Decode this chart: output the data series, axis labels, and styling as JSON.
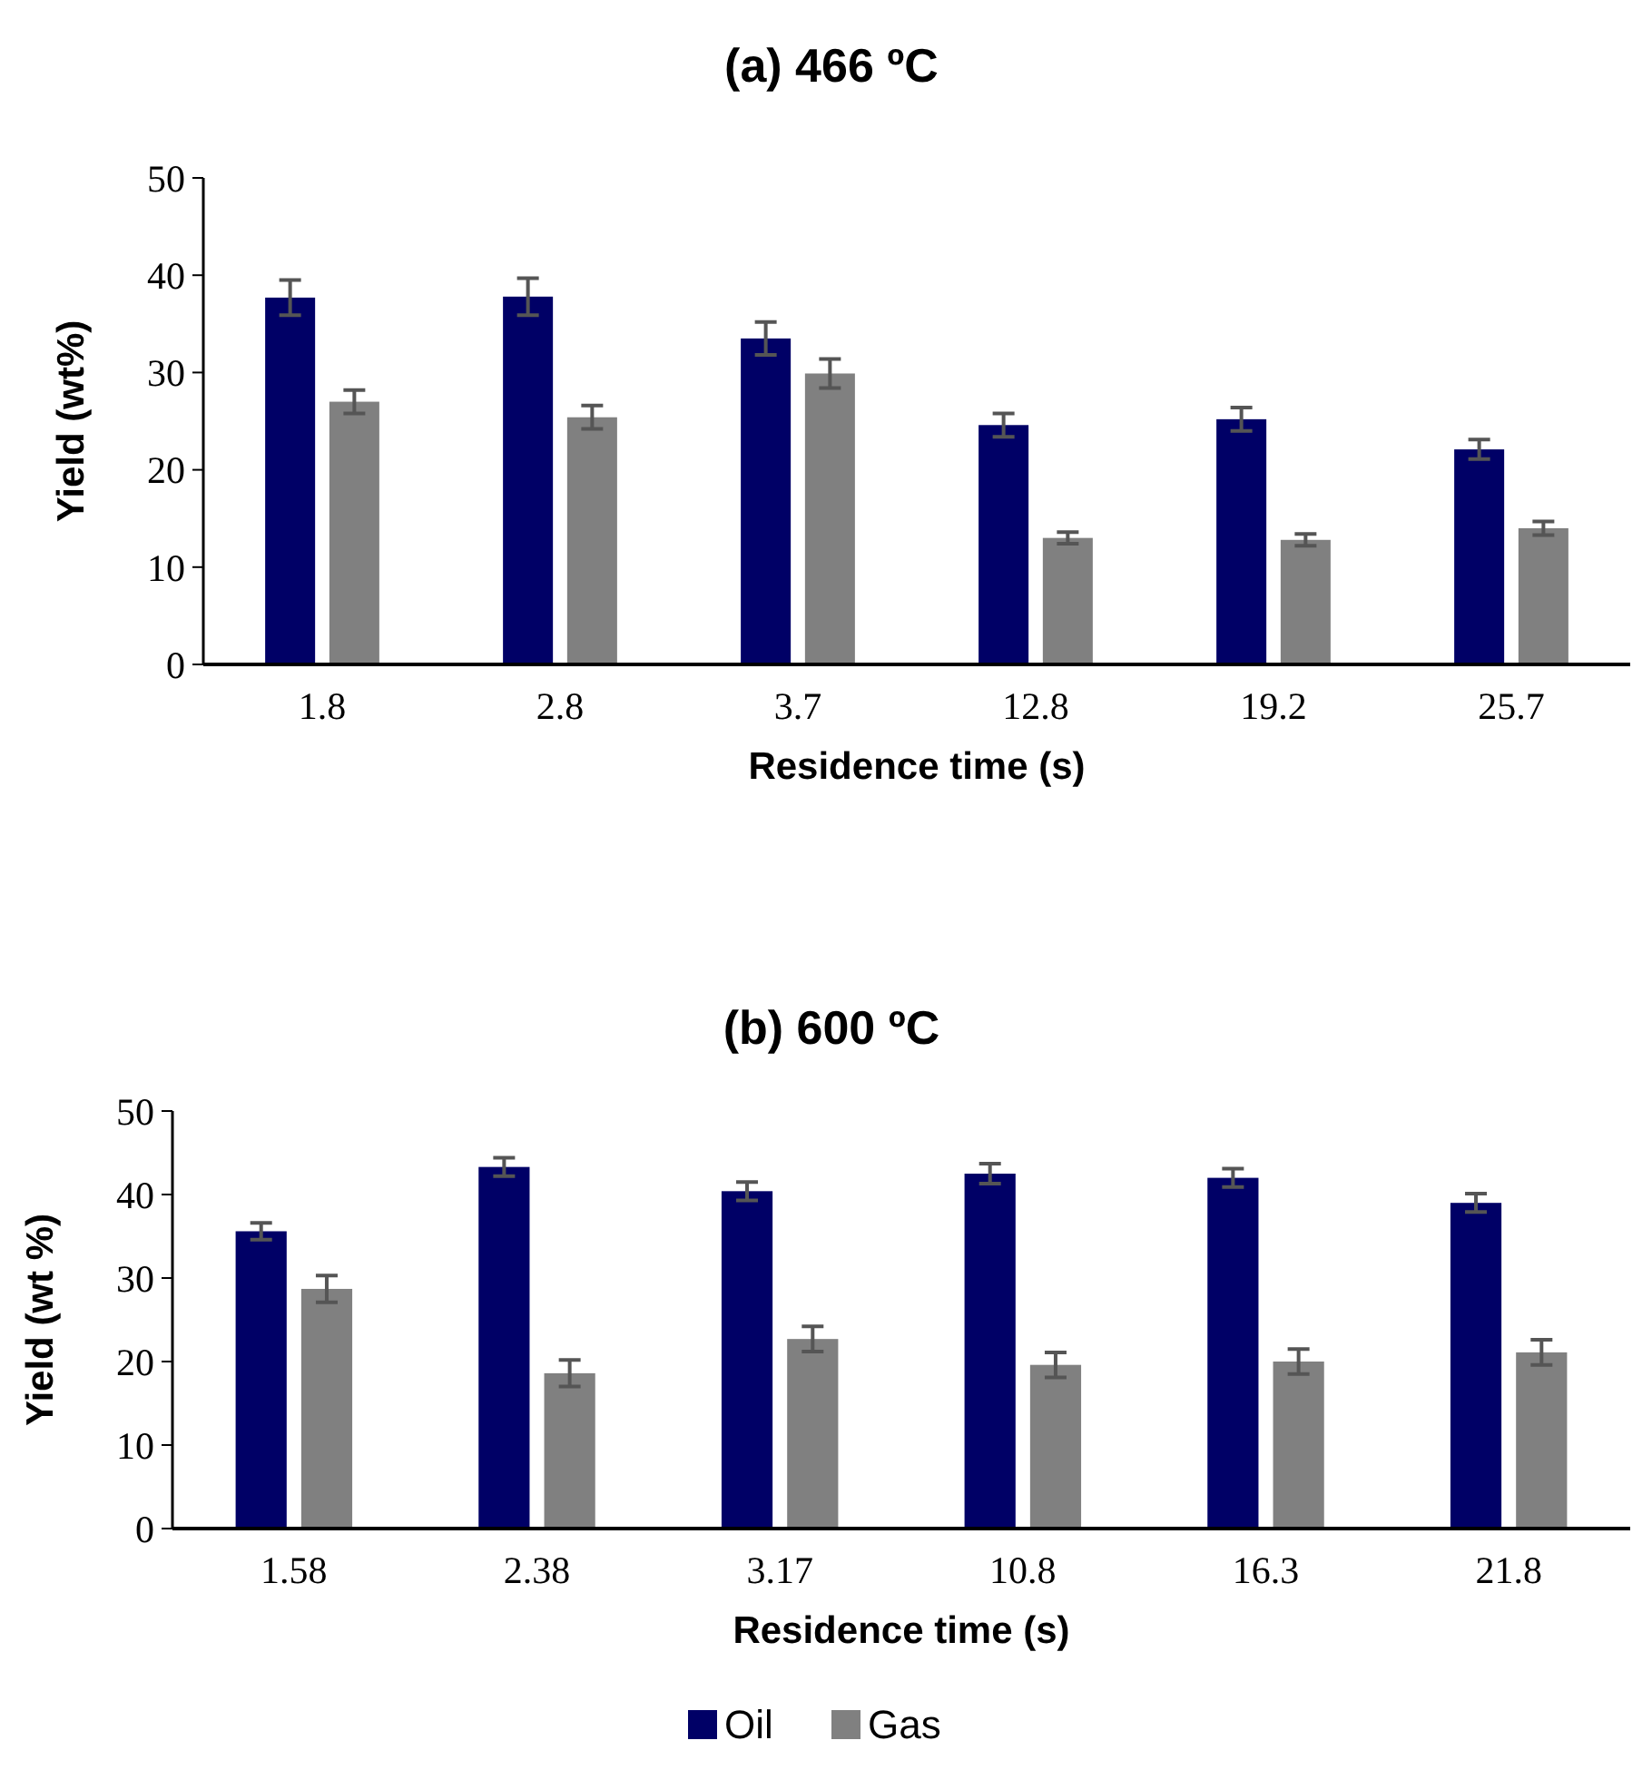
{
  "chart_data": [
    {
      "type": "bar",
      "title": "(a) 466 ºC",
      "xlabel": "Residence time (s)",
      "ylabel": "Yield (wt%)",
      "categories": [
        "1.8",
        "2.8",
        "3.7",
        "12.8",
        "19.2",
        "25.7"
      ],
      "ylim": [
        0,
        50
      ],
      "yticks": [
        0,
        10,
        20,
        30,
        40,
        50
      ],
      "grid": false,
      "series": [
        {
          "color": "#000066",
          "values": [
            37.7,
            37.8,
            33.5,
            24.6,
            25.2,
            22.1
          ],
          "errors": [
            1.8,
            1.9,
            1.7,
            1.2,
            1.2,
            1.0
          ]
        },
        {
          "color": "#808080",
          "values": [
            27.0,
            25.4,
            29.9,
            13.0,
            12.8,
            14.0
          ],
          "errors": [
            1.2,
            1.2,
            1.5,
            0.6,
            0.6,
            0.7
          ]
        }
      ]
    },
    {
      "type": "bar",
      "title": "(b) 600 ºC",
      "xlabel": "Residence time (s)",
      "ylabel": "Yield (wt %)",
      "categories": [
        "1.58",
        "2.38",
        "3.17",
        "10.8",
        "16.3",
        "21.8"
      ],
      "ylim": [
        0,
        50
      ],
      "yticks": [
        0,
        10,
        20,
        30,
        40,
        50
      ],
      "grid": false,
      "legend": "bottom",
      "series": [
        {
          "name": "Oil",
          "color": "#000066",
          "values": [
            35.6,
            43.3,
            40.4,
            42.5,
            42.0,
            39.0
          ],
          "errors": [
            1.0,
            1.1,
            1.1,
            1.2,
            1.1,
            1.1
          ]
        },
        {
          "name": "Gas",
          "color": "#808080",
          "values": [
            28.7,
            18.6,
            22.7,
            19.6,
            20.0,
            21.1
          ],
          "errors": [
            1.6,
            1.6,
            1.5,
            1.5,
            1.5,
            1.5
          ]
        }
      ]
    }
  ]
}
